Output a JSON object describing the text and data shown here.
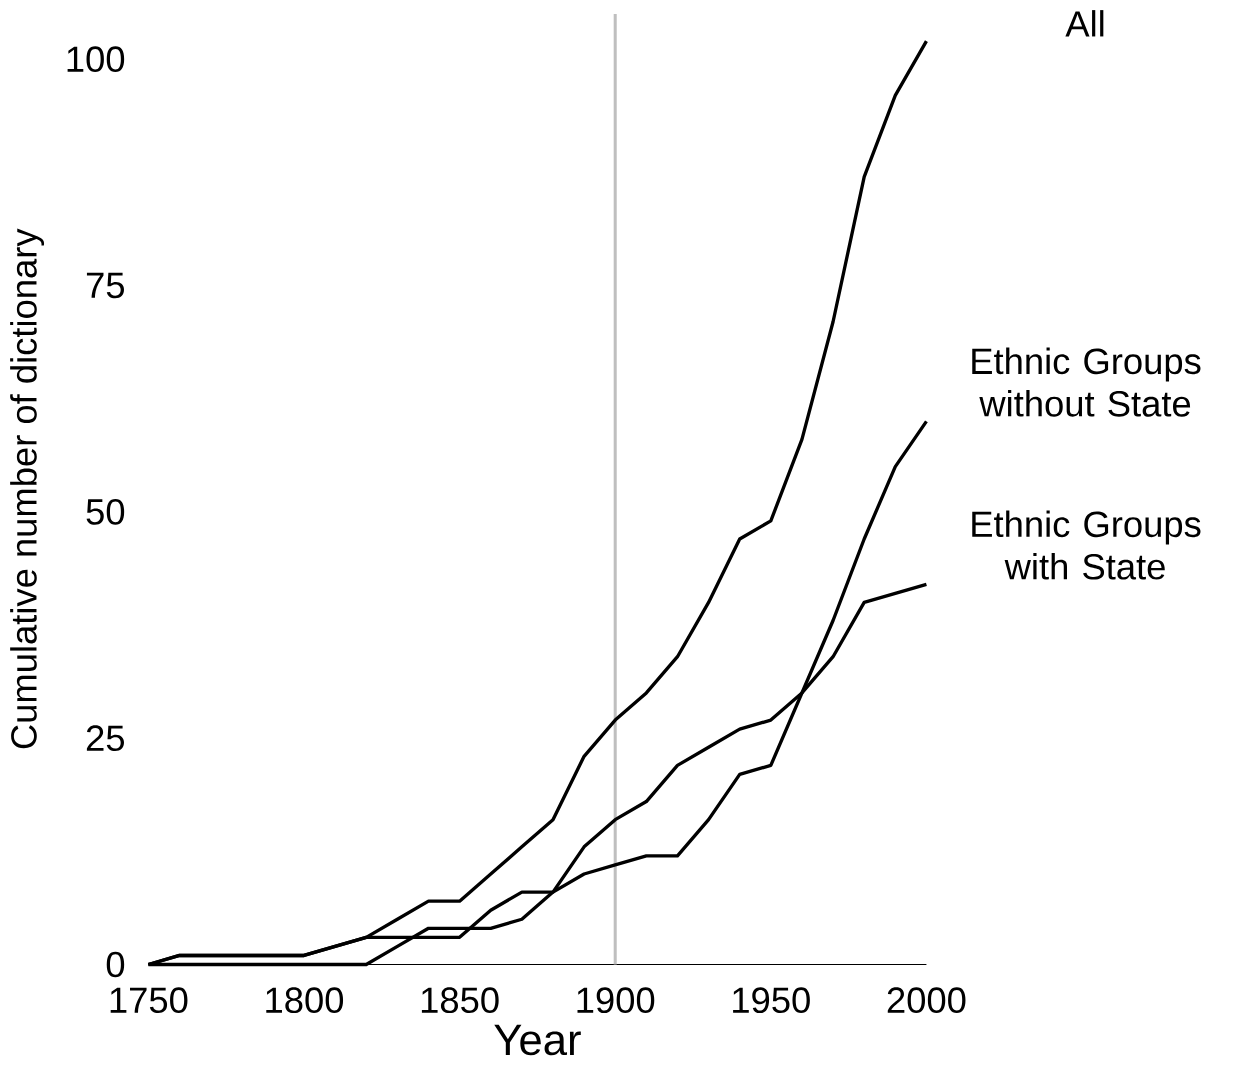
{
  "chart_data": {
    "type": "line",
    "xlabel": "Year",
    "ylabel": "Cumulative number of dictionary",
    "x": [
      1750,
      1760,
      1770,
      1780,
      1790,
      1800,
      1810,
      1820,
      1830,
      1840,
      1850,
      1860,
      1870,
      1880,
      1890,
      1900,
      1910,
      1920,
      1930,
      1940,
      1950,
      1960,
      1970,
      1980,
      1990,
      2000
    ],
    "series": [
      {
        "name": "All",
        "color": "#000000",
        "values": [
          0,
          1,
          1,
          1,
          1,
          1,
          2,
          3,
          5,
          7,
          7,
          10,
          13,
          16,
          23,
          27,
          30,
          34,
          40,
          47,
          49,
          58,
          71,
          87,
          96,
          102
        ]
      },
      {
        "name": "Ethnic Groups without State",
        "color": "#000000",
        "values": [
          0,
          0,
          0,
          0,
          0,
          0,
          0,
          0,
          2,
          4,
          4,
          4,
          5,
          8,
          10,
          11,
          12,
          12,
          16,
          21,
          22,
          30,
          38,
          47,
          55,
          60
        ]
      },
      {
        "name": "Ethnic Groups with State",
        "color": "#000000",
        "values": [
          0,
          1,
          1,
          1,
          1,
          1,
          2,
          3,
          3,
          3,
          3,
          6,
          8,
          8,
          13,
          16,
          18,
          22,
          24,
          26,
          27,
          30,
          34,
          40,
          41,
          42
        ]
      }
    ],
    "xlim": [
      1750,
      2000
    ],
    "ylim": [
      0,
      105
    ],
    "xticks": [
      1750,
      1800,
      1850,
      1900,
      1950,
      2000
    ],
    "yticks": [
      0,
      25,
      50,
      75,
      100
    ],
    "ref_lines": [
      {
        "axis": "x",
        "value": 1900,
        "color": "#bfbfbf"
      }
    ],
    "grid": false,
    "legend": false,
    "marker": "none",
    "line_style": "solid"
  }
}
